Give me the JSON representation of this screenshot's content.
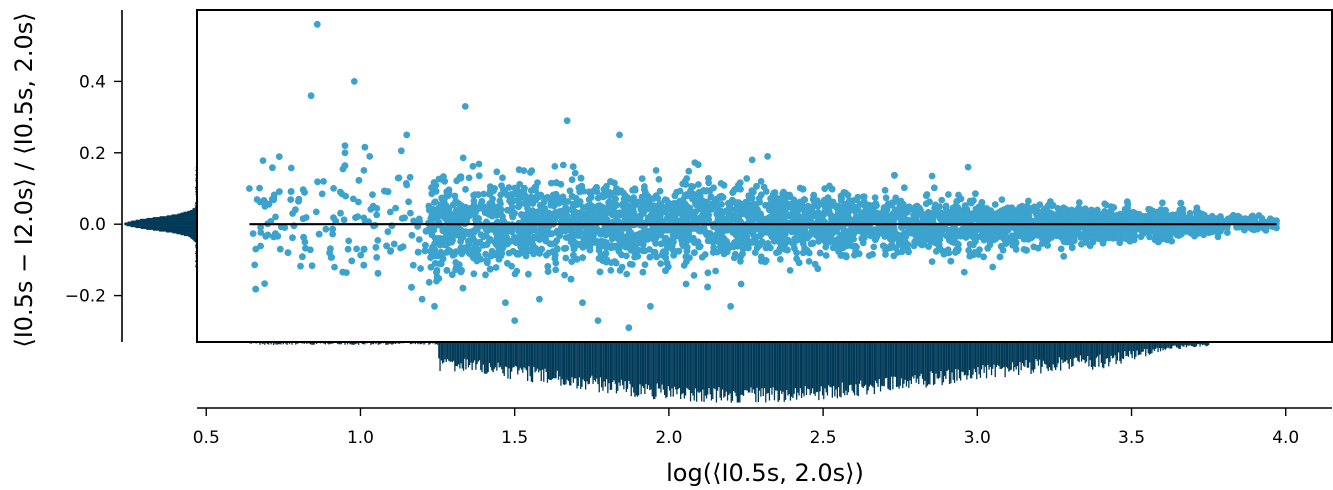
{
  "chart_data": {
    "type": "scatter",
    "xlabel": "log(⟨I0.5s, 2.0s⟩)",
    "ylabel": "⟨I0.5s − I2.0s⟩ / ⟨I0.5s, 2.0s⟩",
    "xlim": [
      0.47,
      4.15
    ],
    "ylim": [
      -0.33,
      0.6
    ],
    "x_ticks": [
      "0.5",
      "1.0",
      "1.5",
      "2.0",
      "2.5",
      "3.0",
      "3.5",
      "4.0"
    ],
    "y_ticks": [
      "−0.2",
      "0.0",
      "0.2",
      "0.4"
    ],
    "reference_line": {
      "y": 0.0,
      "x_range": [
        0.64,
        3.97
      ]
    },
    "point_color": "#3ba3cd",
    "hist_color": "#003a57",
    "line_color": "#000000",
    "grid": false,
    "legend": "none",
    "outlier_points": [
      {
        "x": 0.86,
        "y": 0.56
      },
      {
        "x": 0.84,
        "y": 0.36
      },
      {
        "x": 0.98,
        "y": 0.4
      },
      {
        "x": 1.34,
        "y": 0.33
      },
      {
        "x": 1.67,
        "y": 0.29
      },
      {
        "x": 1.84,
        "y": 0.25
      },
      {
        "x": 1.15,
        "y": 0.25
      },
      {
        "x": 0.95,
        "y": 0.22
      },
      {
        "x": 0.95,
        "y": 0.2
      },
      {
        "x": 1.03,
        "y": 0.19
      },
      {
        "x": 0.64,
        "y": 0.1
      },
      {
        "x": 0.69,
        "y": 0.05
      },
      {
        "x": 0.7,
        "y": -0.03
      },
      {
        "x": 0.74,
        "y": -0.07
      },
      {
        "x": 0.78,
        "y": 0.03
      },
      {
        "x": 0.8,
        "y": 0.07
      },
      {
        "x": 0.82,
        "y": -0.05
      },
      {
        "x": 0.88,
        "y": 0.12
      },
      {
        "x": 0.9,
        "y": -0.08
      },
      {
        "x": 0.96,
        "y": -0.07
      },
      {
        "x": 1.2,
        "y": -0.21
      },
      {
        "x": 1.24,
        "y": -0.23
      },
      {
        "x": 1.47,
        "y": -0.22
      },
      {
        "x": 1.5,
        "y": -0.27
      },
      {
        "x": 1.58,
        "y": -0.21
      },
      {
        "x": 1.77,
        "y": -0.27
      },
      {
        "x": 1.87,
        "y": -0.29
      },
      {
        "x": 1.94,
        "y": -0.23
      },
      {
        "x": 2.2,
        "y": -0.23
      },
      {
        "x": 1.72,
        "y": -0.22
      },
      {
        "x": 3.85,
        "y": 0.02
      },
      {
        "x": 3.95,
        "y": 0.015
      },
      {
        "x": 3.97,
        "y": 0.01
      },
      {
        "x": 3.83,
        "y": 0.025
      },
      {
        "x": 2.97,
        "y": 0.16
      },
      {
        "x": 2.32,
        "y": 0.19
      },
      {
        "x": 2.27,
        "y": 0.18
      },
      {
        "x": 3.05,
        "y": -0.12
      },
      {
        "x": 3.28,
        "y": -0.09
      },
      {
        "x": 3.6,
        "y": 0.06
      }
    ]
  }
}
